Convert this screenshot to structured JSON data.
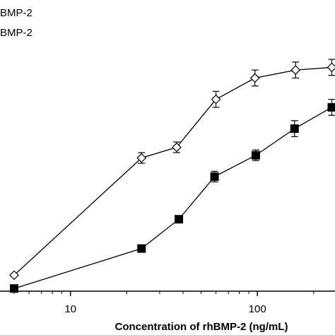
{
  "chart_data": {
    "type": "scatter",
    "x_scale": "log",
    "xlabel": "Concentration of rhBMP-2 (ng/mL)",
    "ylabel": "",
    "xlim": [
      4.2,
      260
    ],
    "ylim": [
      0,
      100
    ],
    "grid": false,
    "legend_position": "top-left",
    "x_ticks": [
      {
        "value": 10,
        "label": "10"
      },
      {
        "value": 100,
        "label": "100"
      }
    ],
    "legend": [
      {
        "label": "BMP-2",
        "marker": "open-diamond"
      },
      {
        "label": "BMP-2",
        "marker": "filled-square"
      }
    ],
    "series": [
      {
        "marker": "open-diamond",
        "color": "#000000",
        "x": [
          5,
          24,
          37,
          60,
          97,
          160,
          250
        ],
        "y": [
          6,
          50,
          54,
          72,
          80,
          83,
          84
        ],
        "err": [
          0,
          2,
          2,
          3,
          3,
          3,
          3
        ]
      },
      {
        "marker": "filled-square",
        "color": "#000000",
        "x": [
          5,
          24,
          38,
          59,
          98,
          158,
          250
        ],
        "y": [
          1,
          16,
          27,
          43,
          51,
          61,
          69
        ],
        "err": [
          0,
          0,
          0,
          2,
          2,
          3,
          3
        ]
      }
    ]
  }
}
